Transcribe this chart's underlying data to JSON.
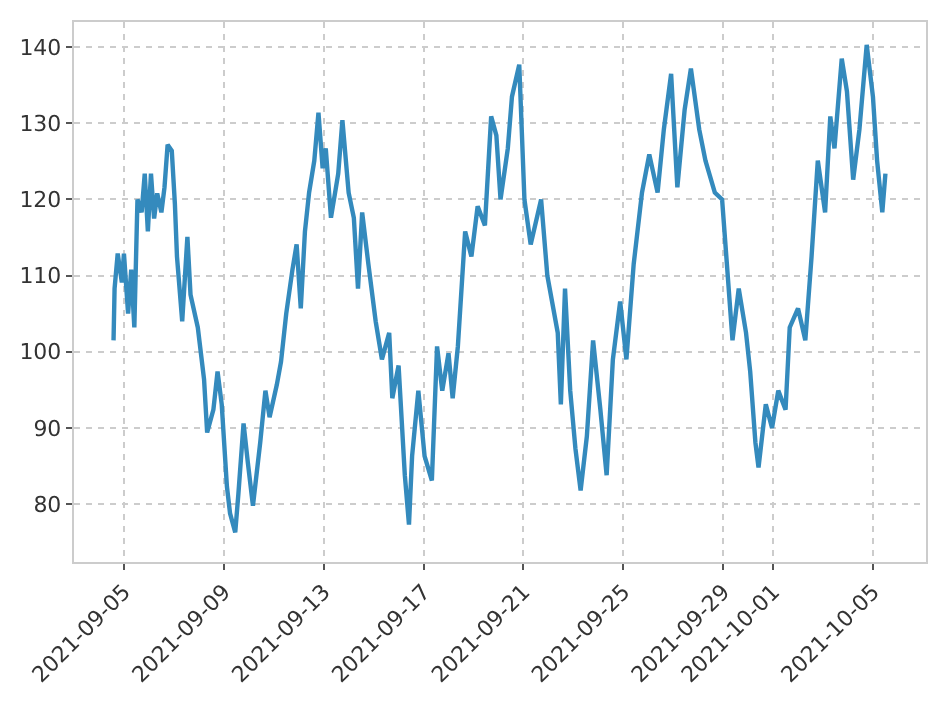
{
  "chart_data": {
    "type": "line",
    "xlim": [
      "2021-09-03T00:00",
      "2021-10-07T03:00"
    ],
    "ylim": [
      72.4,
      143.3
    ],
    "xticks": [
      "2021-09-05",
      "2021-09-09",
      "2021-09-13",
      "2021-09-17",
      "2021-09-21",
      "2021-09-25",
      "2021-09-29",
      "2021-10-01",
      "2021-10-05"
    ],
    "yticks": [
      80,
      90,
      100,
      110,
      120,
      130,
      140
    ],
    "grid": true,
    "line_style": "solid",
    "marker": "none",
    "series": [
      {
        "color": "#348abd",
        "x": [
          "2021-09-04T14:00",
          "2021-09-04T15:00",
          "2021-09-04T18:00",
          "2021-09-04T22:00",
          "2021-09-05T00:00",
          "2021-09-05T04:00",
          "2021-09-05T07:00",
          "2021-09-05T10:00",
          "2021-09-05T13:00",
          "2021-09-05T17:00",
          "2021-09-05T20:00",
          "2021-09-05T23:00",
          "2021-09-06T02:00",
          "2021-09-06T05:00",
          "2021-09-06T08:00",
          "2021-09-06T12:00",
          "2021-09-06T15:00",
          "2021-09-06T18:00",
          "2021-09-06T22:00",
          "2021-09-07T01:00",
          "2021-09-07T03:00",
          "2021-09-07T08:00",
          "2021-09-07T13:00",
          "2021-09-07T16:00",
          "2021-09-07T23:00",
          "2021-09-08T05:00",
          "2021-09-08T08:00",
          "2021-09-08T14:00",
          "2021-09-08T18:00",
          "2021-09-08T22:00",
          "2021-09-09T03:00",
          "2021-09-09T06:00",
          "2021-09-09T11:00",
          "2021-09-09T14:00",
          "2021-09-09T19:00",
          "2021-09-09T23:00",
          "2021-09-10T04:00",
          "2021-09-10T11:00",
          "2021-09-10T16:00",
          "2021-09-10T20:00",
          "2021-09-11T03:00",
          "2021-09-11T07:00",
          "2021-09-11T12:00",
          "2021-09-11T18:00",
          "2021-09-11T22:00",
          "2021-09-12T02:00",
          "2021-09-12T06:00",
          "2021-09-12T10:00",
          "2021-09-12T15:00",
          "2021-09-12T19:00",
          "2021-09-12T23:00",
          "2021-09-13T02:00",
          "2021-09-13T07:00",
          "2021-09-13T14:00",
          "2021-09-13T18:00",
          "2021-09-14T00:00",
          "2021-09-14T05:00",
          "2021-09-14T09:00",
          "2021-09-14T13:00",
          "2021-09-14T19:00",
          "2021-09-15T02:00",
          "2021-09-15T08:00",
          "2021-09-15T15:00",
          "2021-09-15T18:00",
          "2021-09-16T00:00",
          "2021-09-16T06:00",
          "2021-09-16T10:00",
          "2021-09-16T13:00",
          "2021-09-16T19:00",
          "2021-09-17T01:00",
          "2021-09-17T08:00",
          "2021-09-17T13:00",
          "2021-09-17T18:00",
          "2021-09-18T00:00",
          "2021-09-18T04:00",
          "2021-09-18T09:00",
          "2021-09-18T16:00",
          "2021-09-18T22:00",
          "2021-09-19T04:00",
          "2021-09-19T11:00",
          "2021-09-19T17:00",
          "2021-09-19T22:00",
          "2021-09-20T02:00",
          "2021-09-20T09:00",
          "2021-09-20T13:00",
          "2021-09-20T20:00",
          "2021-09-21T01:00",
          "2021-09-21T07:00",
          "2021-09-21T17:00",
          "2021-09-21T23:00",
          "2021-09-22T09:00",
          "2021-09-22T12:00",
          "2021-09-22T16:00",
          "2021-09-22T21:00",
          "2021-09-23T02:00",
          "2021-09-23T07:00",
          "2021-09-23T13:00",
          "2021-09-23T19:00",
          "2021-09-24T02:00",
          "2021-09-24T08:00",
          "2021-09-24T14:00",
          "2021-09-24T21:00",
          "2021-09-25T03:00",
          "2021-09-25T10:00",
          "2021-09-25T18:00",
          "2021-09-26T01:00",
          "2021-09-26T09:00",
          "2021-09-26T15:00",
          "2021-09-26T22:00",
          "2021-09-27T04:00",
          "2021-09-27T11:00",
          "2021-09-27T17:00",
          "2021-09-28T01:00",
          "2021-09-28T07:00",
          "2021-09-28T16:00",
          "2021-09-28T23:00",
          "2021-09-29T04:00",
          "2021-09-29T09:00",
          "2021-09-29T15:00",
          "2021-09-29T22:00",
          "2021-09-30T02:00",
          "2021-09-30T07:00",
          "2021-09-30T10:00",
          "2021-09-30T17:00",
          "2021-09-30T23:00",
          "2021-10-01T05:00",
          "2021-10-01T12:00",
          "2021-10-01T16:00",
          "2021-10-02T00:00",
          "2021-10-02T07:00",
          "2021-10-02T13:00",
          "2021-10-02T19:00",
          "2021-10-03T02:00",
          "2021-10-03T07:00",
          "2021-10-03T11:00",
          "2021-10-03T18:00",
          "2021-10-03T23:00",
          "2021-10-04T05:00",
          "2021-10-04T11:00",
          "2021-10-04T18:00",
          "2021-10-05T00:00",
          "2021-10-05T04:00",
          "2021-10-05T09:00",
          "2021-10-05T12:00"
        ],
        "values": [
          101.5,
          108.3,
          112.9,
          109.1,
          112.9,
          105,
          110.8,
          103.2,
          120,
          118.3,
          123.4,
          115.8,
          123.4,
          117.5,
          120.8,
          118.3,
          121.6,
          127.2,
          126.4,
          119.4,
          112.5,
          104,
          115.1,
          107.5,
          103.2,
          96.4,
          89.4,
          92.4,
          97.4,
          93.1,
          82.3,
          78.8,
          76.3,
          81.3,
          90.6,
          85.6,
          79.8,
          88.1,
          94.9,
          91.4,
          95.7,
          98.7,
          105,
          110.8,
          114.1,
          105.7,
          115.8,
          120.9,
          125.1,
          131.4,
          124.1,
          126.7,
          117.6,
          123.4,
          130.4,
          120.9,
          117.6,
          108.3,
          118.3,
          111.5,
          104,
          99,
          102.5,
          93.9,
          98.2,
          83.8,
          77.3,
          86.3,
          94.9,
          86.3,
          83.1,
          100.7,
          94.9,
          99.8,
          93.9,
          100.7,
          115.8,
          112.5,
          119.1,
          116.6,
          130.9,
          128.4,
          120,
          126.7,
          133.5,
          137.7,
          120,
          114.1,
          120,
          110,
          102.5,
          93.1,
          108.3,
          94.9,
          87.3,
          81.8,
          88.9,
          101.5,
          92.4,
          83.8,
          99,
          106.6,
          99,
          111.5,
          120.9,
          125.9,
          120.9,
          129.2,
          136.5,
          121.6,
          131.8,
          137.2,
          129.2,
          125.1,
          120.9,
          120,
          110.8,
          101.5,
          108.3,
          102.5,
          97.4,
          88.1,
          84.8,
          93.1,
          90,
          94.9,
          92.4,
          103.2,
          105.7,
          101.5,
          112.5,
          125.1,
          118.3,
          130.9,
          126.7,
          138.5,
          134.2,
          122.6,
          129.2,
          140.3,
          133.5,
          125.1,
          118.3,
          123.4
        ]
      }
    ]
  }
}
